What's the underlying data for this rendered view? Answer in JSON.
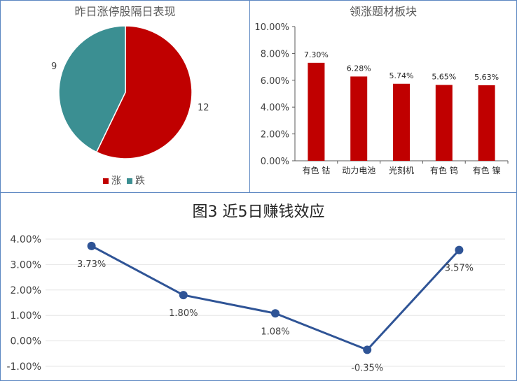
{
  "chart_data": [
    {
      "type": "pie",
      "title": "昨日涨停股隔日表现",
      "categories": [
        "涨",
        "跌"
      ],
      "values": [
        12,
        9
      ],
      "colors": [
        "#c00000",
        "#3b8f92"
      ],
      "legend": "bottom"
    },
    {
      "type": "bar",
      "title": "领涨题材板块",
      "categories": [
        "有色 钴",
        "动力电池",
        "光刻机",
        "有色 钨",
        "有色 镍"
      ],
      "values": [
        7.3,
        6.28,
        5.74,
        5.65,
        5.63
      ],
      "data_labels": [
        "7.30%",
        "6.28%",
        "5.74%",
        "5.65%",
        "5.63%"
      ],
      "yticks": [
        "0.00%",
        "2.00%",
        "4.00%",
        "6.00%",
        "8.00%",
        "10.00%"
      ],
      "ylim": [
        0,
        10
      ],
      "color": "#c00000",
      "grid": false
    },
    {
      "type": "line",
      "title": "图3 近5日赚钱效应",
      "x": [
        1,
        2,
        3,
        4,
        5
      ],
      "values": [
        3.73,
        1.8,
        1.08,
        -0.35,
        3.57
      ],
      "data_labels": [
        "3.73%",
        "1.80%",
        "1.08%",
        "-0.35%",
        "3.57%"
      ],
      "yticks": [
        "-1.00%",
        "0.00%",
        "1.00%",
        "2.00%",
        "3.00%",
        "4.00%"
      ],
      "ylim": [
        -1,
        4
      ],
      "color": "#2f5496",
      "grid": true
    }
  ]
}
